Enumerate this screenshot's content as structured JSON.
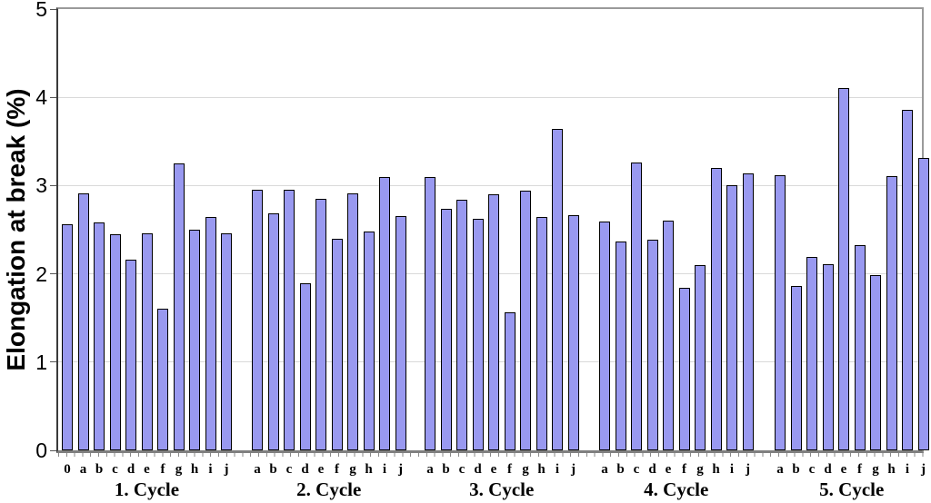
{
  "chart_data": {
    "type": "bar",
    "title": "",
    "xlabel": "",
    "ylabel": "Elongation at break (%)",
    "ylim": [
      0,
      5
    ],
    "ytick_labels": [
      "0",
      "1",
      "2",
      "3",
      "4",
      "5"
    ],
    "grid": true,
    "legend": false,
    "bar_color": "#9999f0",
    "bar_border_color": "#000000",
    "gridline_color": "#d9d9d9",
    "groups": [
      {
        "label": "1. Cycle",
        "categories": [
          "0",
          "a",
          "b",
          "c",
          "d",
          "e",
          "f",
          "g",
          "h",
          "i",
          "j"
        ],
        "values": [
          2.56,
          2.91,
          2.58,
          2.45,
          2.16,
          2.46,
          1.6,
          3.25,
          2.5,
          2.64,
          2.46
        ]
      },
      {
        "label": "2. Cycle",
        "categories": [
          "a",
          "b",
          "c",
          "d",
          "e",
          "f",
          "g",
          "h",
          "i",
          "j"
        ],
        "values": [
          2.95,
          2.69,
          2.95,
          1.89,
          2.85,
          2.4,
          2.91,
          2.48,
          3.1,
          2.65
        ]
      },
      {
        "label": "3. Cycle",
        "categories": [
          "a",
          "b",
          "c",
          "d",
          "e",
          "f",
          "g",
          "h",
          "i",
          "j"
        ],
        "values": [
          3.1,
          2.74,
          2.84,
          2.62,
          2.9,
          1.56,
          2.94,
          2.64,
          3.64,
          2.66
        ]
      },
      {
        "label": "4. Cycle",
        "categories": [
          "a",
          "b",
          "c",
          "d",
          "e",
          "f",
          "g",
          "h",
          "i",
          "j"
        ],
        "values": [
          2.59,
          2.37,
          3.26,
          2.39,
          2.6,
          1.84,
          2.1,
          3.2,
          3.0,
          3.14
        ]
      },
      {
        "label": "5. Cycle",
        "categories": [
          "a",
          "b",
          "c",
          "d",
          "e",
          "f",
          "g",
          "h",
          "i",
          "j"
        ],
        "values": [
          3.12,
          1.86,
          2.19,
          2.11,
          4.1,
          2.32,
          1.99,
          3.11,
          3.86,
          3.31
        ]
      }
    ]
  }
}
